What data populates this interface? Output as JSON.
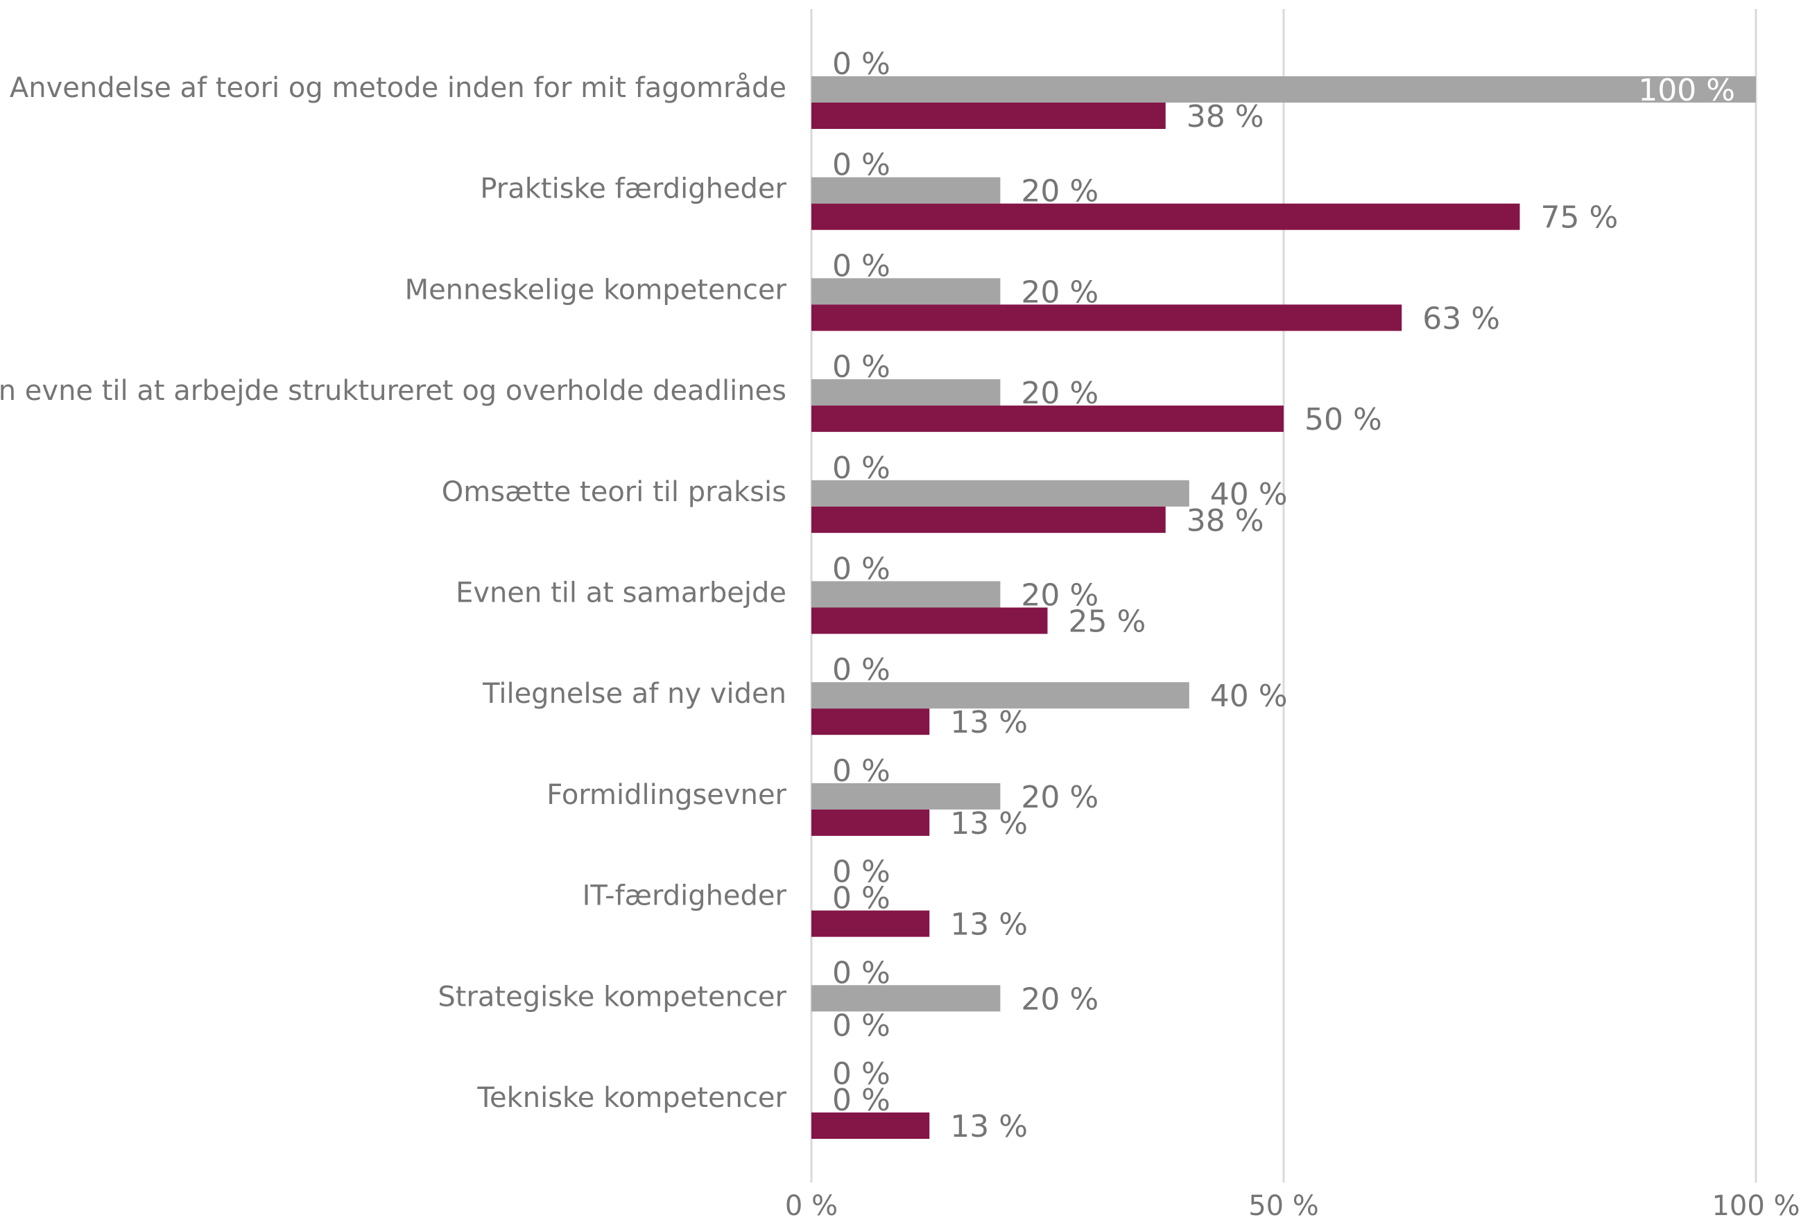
{
  "chart_data": {
    "type": "hbar",
    "categories": [
      "Anvendelse af teori og metode inden for mit fagområde",
      "Praktiske færdigheder",
      "Menneskelige kompetencer",
      "Min evne til at arbejde struktureret og overholde deadlines",
      "Omsætte teori til praksis",
      "Evnen til at samarbejde",
      "Tilegnelse af ny viden",
      "Formidlingsevner",
      "IT-færdigheder",
      "Strategiske kompetencer",
      "Tekniske kompetencer"
    ],
    "series": [
      {
        "values": [
          0,
          0,
          0,
          0,
          0,
          0,
          0,
          0,
          0,
          0,
          0
        ],
        "value_labels": [
          "0 %",
          "0 %",
          "0 %",
          "0 %",
          "0 %",
          "0 %",
          "0 %",
          "0 %",
          "0 %",
          "0 %",
          "0 %"
        ]
      },
      {
        "color": "#a5a5a5",
        "values": [
          100,
          20,
          20,
          20,
          40,
          20,
          40,
          20,
          0,
          20,
          0
        ],
        "value_labels": [
          "100 %",
          "20 %",
          "20 %",
          "20 %",
          "40 %",
          "20 %",
          "40 %",
          "20 %",
          "0 %",
          "20 %",
          "0 %"
        ]
      },
      {
        "color": "#841547",
        "values": [
          37.5,
          75,
          62.5,
          50,
          37.5,
          25,
          12.5,
          12.5,
          12.5,
          0,
          12.5
        ],
        "value_labels": [
          "38 %",
          "75 %",
          "63 %",
          "50 %",
          "38 %",
          "25 %",
          "13 %",
          "13 %",
          "13 %",
          "0 %",
          "13 %"
        ]
      }
    ],
    "xlim": [
      0,
      100
    ],
    "xticks": [
      {
        "value": 0,
        "label": "0 %"
      },
      {
        "value": 50,
        "label": "50 %"
      },
      {
        "value": 100,
        "label": "100 %"
      }
    ],
    "grid": true
  }
}
